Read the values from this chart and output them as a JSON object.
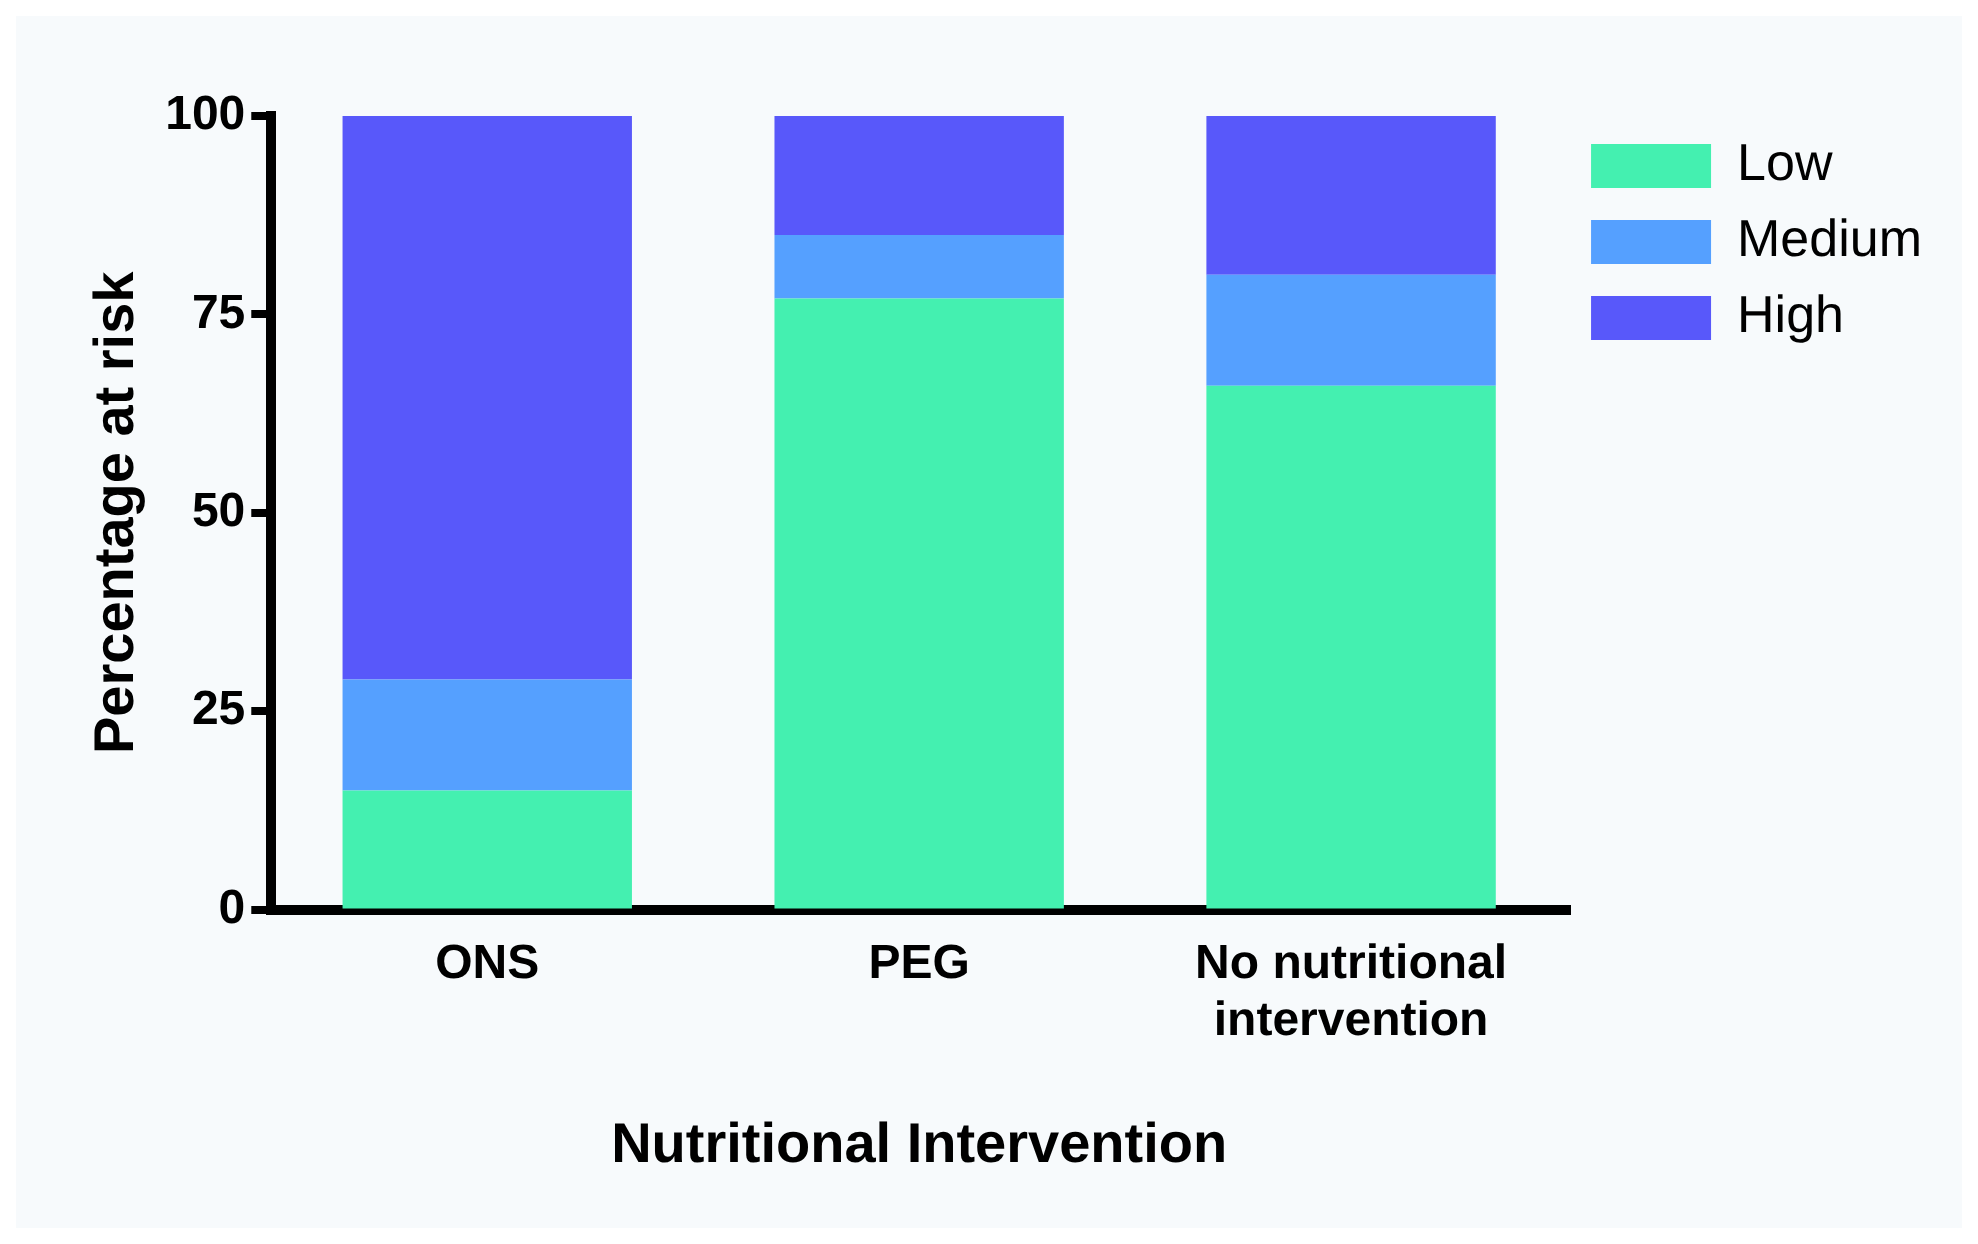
{
  "chart_data": {
    "type": "bar",
    "stacked": true,
    "xlabel": "Nutritional Intervention",
    "ylabel": "Percentage at risk",
    "categories": [
      "ONS",
      "PEG",
      "No nutritional intervention"
    ],
    "series": [
      {
        "name": "Low",
        "color": "#44f0b0",
        "values": [
          15,
          77,
          66
        ]
      },
      {
        "name": "Medium",
        "color": "#55a0ff",
        "values": [
          14,
          8,
          14
        ]
      },
      {
        "name": "High",
        "color": "#5858fa",
        "values": [
          71,
          15,
          20
        ]
      }
    ],
    "ylim": [
      0,
      100
    ],
    "yticks": [
      0,
      25,
      50,
      75,
      100
    ],
    "grid": false,
    "legend": "top right"
  }
}
